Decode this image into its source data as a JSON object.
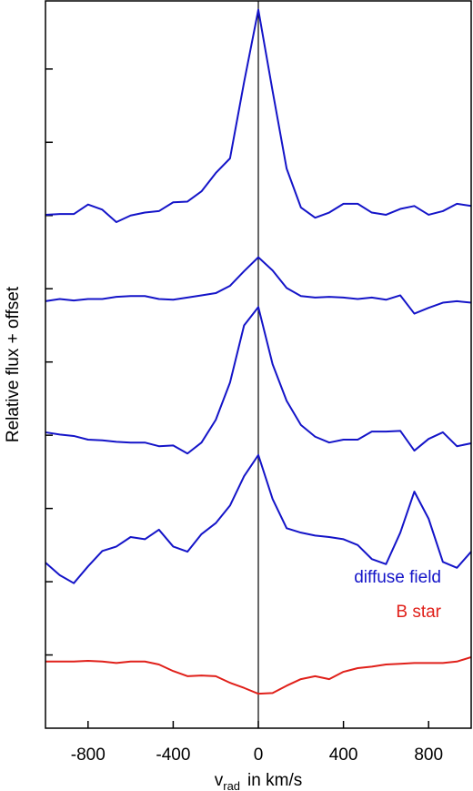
{
  "chart_data": {
    "type": "line",
    "y_label": "Relative flux + offset",
    "x_label": "v",
    "x_label_sub": "rad",
    "x_label_rest": "in km/s",
    "x": [
      -1000,
      -933,
      -867,
      -800,
      -733,
      -667,
      -600,
      -533,
      -467,
      -400,
      -333,
      -267,
      -200,
      -133,
      -67,
      0,
      67,
      133,
      200,
      267,
      333,
      400,
      467,
      533,
      600,
      667,
      733,
      800,
      867,
      933,
      1000
    ],
    "series": [
      {
        "color": "#1414c8",
        "values": [
          7.01,
          7.02,
          7.02,
          7.15,
          7.08,
          6.91,
          7.0,
          7.04,
          7.06,
          7.18,
          7.19,
          7.33,
          7.58,
          7.78,
          8.82,
          9.81,
          8.7,
          7.64,
          7.11,
          6.97,
          7.04,
          7.16,
          7.16,
          7.04,
          7.01,
          7.09,
          7.13,
          7.01,
          7.06,
          7.16,
          7.13
        ]
      },
      {
        "color": "#1414c8",
        "values": [
          5.83,
          5.86,
          5.84,
          5.86,
          5.86,
          5.89,
          5.9,
          5.9,
          5.86,
          5.85,
          5.88,
          5.91,
          5.94,
          6.04,
          6.24,
          6.43,
          6.25,
          6.01,
          5.9,
          5.88,
          5.89,
          5.88,
          5.86,
          5.88,
          5.85,
          5.91,
          5.66,
          5.74,
          5.81,
          5.83,
          5.81
        ]
      },
      {
        "color": "#1414c8",
        "values": [
          4.04,
          4.01,
          3.99,
          3.94,
          3.93,
          3.91,
          3.9,
          3.9,
          3.85,
          3.86,
          3.75,
          3.9,
          4.21,
          4.72,
          5.5,
          5.75,
          4.97,
          4.47,
          4.14,
          3.98,
          3.9,
          3.94,
          3.94,
          4.05,
          4.05,
          4.06,
          3.79,
          3.95,
          4.04,
          3.85,
          3.89
        ]
      },
      {
        "name": "diffuse field",
        "color": "#1414c8",
        "values": [
          2.26,
          2.09,
          1.98,
          2.21,
          2.42,
          2.48,
          2.61,
          2.58,
          2.71,
          2.48,
          2.41,
          2.65,
          2.8,
          3.04,
          3.44,
          3.73,
          3.13,
          2.73,
          2.67,
          2.63,
          2.61,
          2.58,
          2.5,
          2.31,
          2.24,
          2.67,
          3.23,
          2.86,
          2.27,
          2.19,
          2.41
        ]
      },
      {
        "name": "B star",
        "color": "#e0201a",
        "values": [
          0.91,
          0.91,
          0.91,
          0.92,
          0.91,
          0.89,
          0.91,
          0.91,
          0.87,
          0.78,
          0.71,
          0.72,
          0.71,
          0.62,
          0.55,
          0.47,
          0.48,
          0.58,
          0.67,
          0.71,
          0.67,
          0.77,
          0.82,
          0.84,
          0.87,
          0.88,
          0.89,
          0.89,
          0.89,
          0.91,
          0.97
        ]
      }
    ],
    "xlim": [
      -1000,
      1000
    ],
    "xticks": [
      -800,
      -400,
      0,
      400,
      800
    ],
    "ylim": [
      0,
      9.93
    ],
    "yticks": [
      1,
      2,
      3,
      4,
      5,
      6,
      7,
      8,
      9
    ],
    "vline": 0,
    "legend": "lower right"
  }
}
